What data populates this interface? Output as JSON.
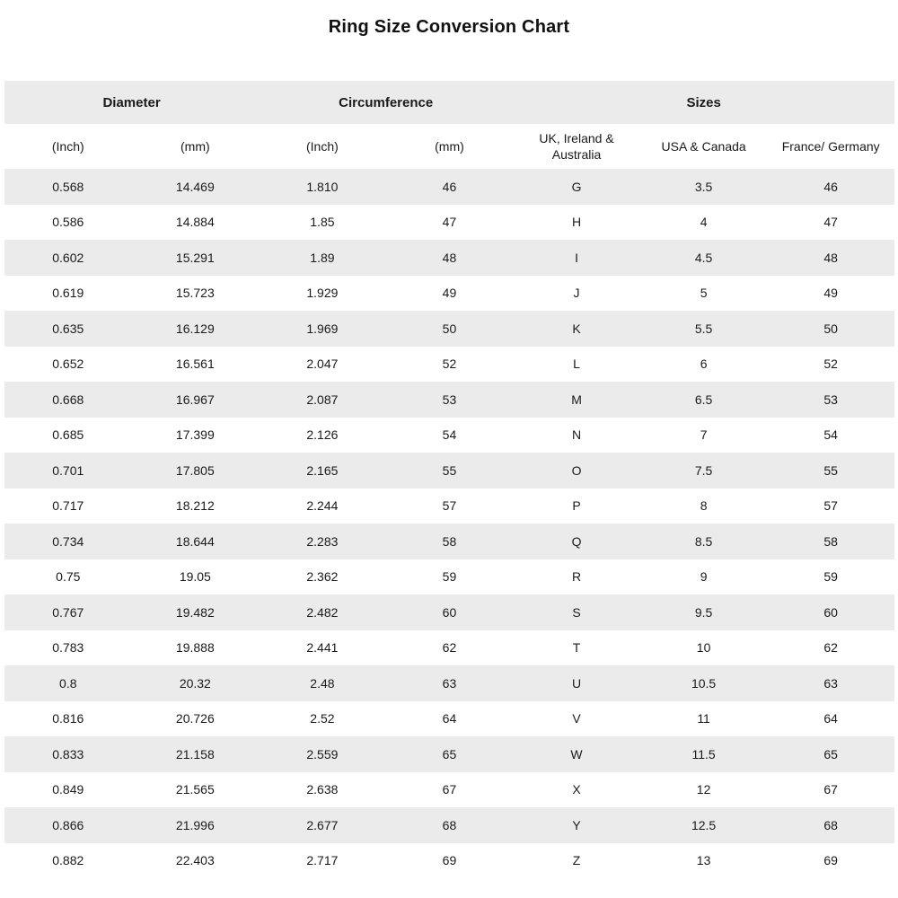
{
  "title": "Ring Size Conversion Chart",
  "colors": {
    "stripe": "#ebebeb",
    "background": "#ffffff",
    "text": "#1a1a1a"
  },
  "chart_data": {
    "type": "table",
    "title": "Ring Size Conversion Chart",
    "group_headers": [
      {
        "label": "Diameter",
        "span": 2
      },
      {
        "label": "Circumference",
        "span": 2
      },
      {
        "label": "Sizes",
        "span": 3
      }
    ],
    "columns": [
      "(Inch)",
      "(mm)",
      "(Inch)",
      "(mm)",
      "UK, Ireland & Australia",
      "USA & Canada",
      "France/ Germany"
    ],
    "rows": [
      [
        "0.568",
        "14.469",
        "1.810",
        "46",
        "G",
        "3.5",
        "46"
      ],
      [
        "0.586",
        "14.884",
        "1.85",
        "47",
        "H",
        "4",
        "47"
      ],
      [
        "0.602",
        "15.291",
        "1.89",
        "48",
        "I",
        "4.5",
        "48"
      ],
      [
        "0.619",
        "15.723",
        "1.929",
        "49",
        "J",
        "5",
        "49"
      ],
      [
        "0.635",
        "16.129",
        "1.969",
        "50",
        "K",
        "5.5",
        "50"
      ],
      [
        "0.652",
        "16.561",
        "2.047",
        "52",
        "L",
        "6",
        "52"
      ],
      [
        "0.668",
        "16.967",
        "2.087",
        "53",
        "M",
        "6.5",
        "53"
      ],
      [
        "0.685",
        "17.399",
        "2.126",
        "54",
        "N",
        "7",
        "54"
      ],
      [
        "0.701",
        "17.805",
        "2.165",
        "55",
        "O",
        "7.5",
        "55"
      ],
      [
        "0.717",
        "18.212",
        "2.244",
        "57",
        "P",
        "8",
        "57"
      ],
      [
        "0.734",
        "18.644",
        "2.283",
        "58",
        "Q",
        "8.5",
        "58"
      ],
      [
        "0.75",
        "19.05",
        "2.362",
        "59",
        "R",
        "9",
        "59"
      ],
      [
        "0.767",
        "19.482",
        "2.482",
        "60",
        "S",
        "9.5",
        "60"
      ],
      [
        "0.783",
        "19.888",
        "2.441",
        "62",
        "T",
        "10",
        "62"
      ],
      [
        "0.8",
        "20.32",
        "2.48",
        "63",
        "U",
        "10.5",
        "63"
      ],
      [
        "0.816",
        "20.726",
        "2.52",
        "64",
        "V",
        "11",
        "64"
      ],
      [
        "0.833",
        "21.158",
        "2.559",
        "65",
        "W",
        "11.5",
        "65"
      ],
      [
        "0.849",
        "21.565",
        "2.638",
        "67",
        "X",
        "12",
        "67"
      ],
      [
        "0.866",
        "21.996",
        "2.677",
        "68",
        "Y",
        "12.5",
        "68"
      ],
      [
        "0.882",
        "22.403",
        "2.717",
        "69",
        "Z",
        "13",
        "69"
      ]
    ]
  }
}
